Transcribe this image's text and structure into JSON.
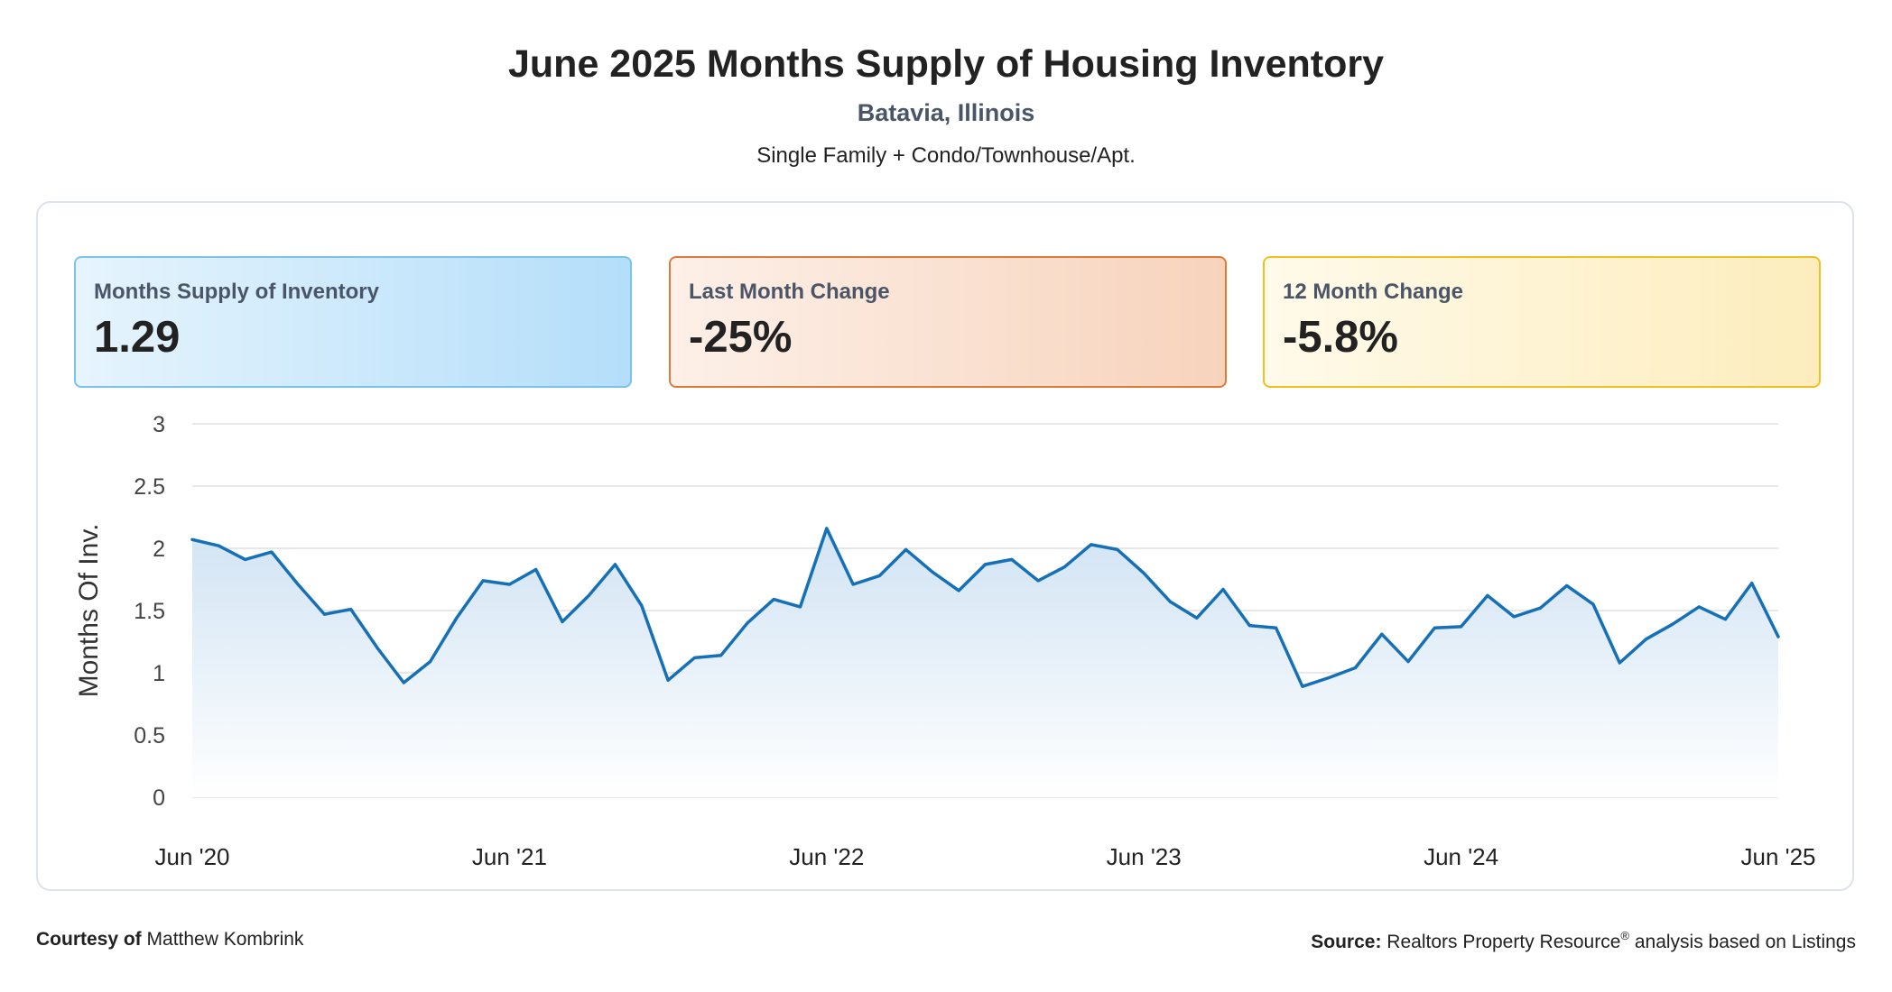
{
  "header": {
    "title": "June 2025 Months Supply of Housing Inventory",
    "location": "Batavia, Illinois",
    "property_types": "Single Family + Condo/Townhouse/Apt."
  },
  "cards": {
    "supply": {
      "label": "Months Supply of Inventory",
      "value": "1.29"
    },
    "last_month": {
      "label": "Last Month Change",
      "value": "-25%"
    },
    "twelve_month": {
      "label": "12 Month Change",
      "value": "-5.8%"
    }
  },
  "footer": {
    "courtesy_label": "Courtesy of",
    "courtesy_name": "Matthew Kombrink",
    "source_label": "Source:",
    "source_text_a": "Realtors Property Resource",
    "source_reg": "®",
    "source_text_b": " analysis based on Listings"
  },
  "colors": {
    "line": "#1570b8",
    "area_top": "#cfe2f3",
    "area_bottom": "#ffffff",
    "grid": "#dde1e6"
  },
  "chart_data": {
    "type": "area",
    "title": "June 2025 Months Supply of Housing Inventory",
    "ylabel": "Months Of Inv.",
    "xlabel": "",
    "ylim": [
      0,
      3
    ],
    "yticks": [
      "0",
      "0.5",
      "1",
      "1.5",
      "2",
      "2.5",
      "3"
    ],
    "xtick_labels": [
      "Jun '20",
      "Jun '21",
      "Jun '22",
      "Jun '23",
      "Jun '24",
      "Jun '25"
    ],
    "xtick_index": [
      0,
      12,
      24,
      36,
      48,
      60
    ],
    "grid": true,
    "series": [
      {
        "name": "Months Supply of Inventory",
        "values": [
          2.07,
          2.02,
          1.91,
          1.97,
          1.71,
          1.47,
          1.51,
          1.2,
          0.92,
          1.09,
          1.44,
          1.74,
          1.71,
          1.83,
          1.41,
          1.62,
          1.87,
          1.54,
          0.94,
          1.12,
          1.14,
          1.4,
          1.59,
          1.53,
          2.16,
          1.71,
          1.78,
          1.99,
          1.81,
          1.66,
          1.87,
          1.91,
          1.74,
          1.85,
          2.03,
          1.99,
          1.8,
          1.57,
          1.44,
          1.67,
          1.38,
          1.36,
          0.89,
          0.96,
          1.04,
          1.31,
          1.09,
          1.36,
          1.37,
          1.62,
          1.45,
          1.52,
          1.7,
          1.55,
          1.08,
          1.27,
          1.39,
          1.53,
          1.43,
          1.72,
          1.29
        ]
      }
    ]
  }
}
